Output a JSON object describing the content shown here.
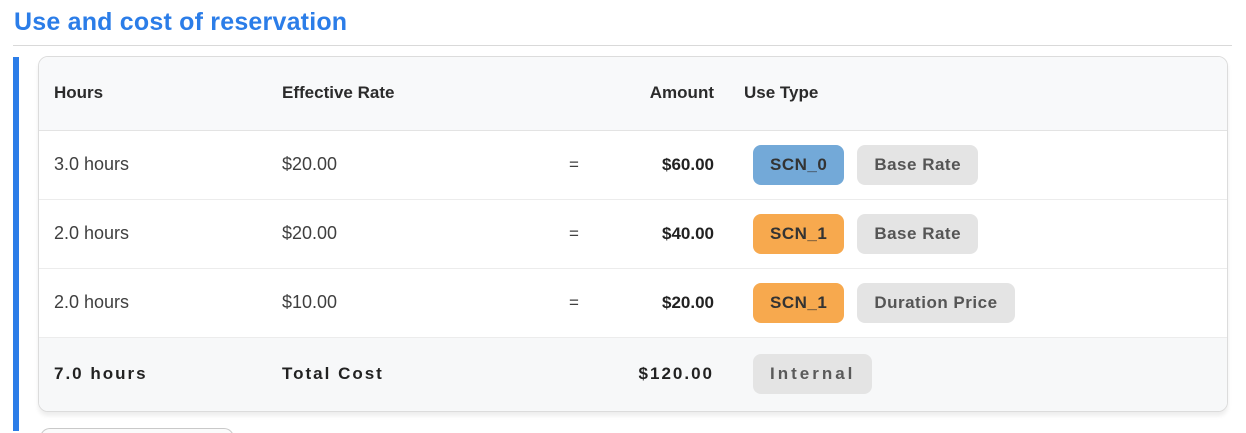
{
  "page": {
    "title": "Use and cost of reservation"
  },
  "colors": {
    "accent_blue": "#2b7de8",
    "scn0_badge": "#73a9d8",
    "scn1_badge": "#f7a94e",
    "neutral_badge": "#e4e4e4"
  },
  "table": {
    "headers": {
      "hours": "Hours",
      "rate": "Effective Rate",
      "equals": "",
      "amount": "Amount",
      "use_type": "Use Type"
    },
    "rows": [
      {
        "hours": "3.0 hours",
        "rate": "$20.00",
        "equals": "=",
        "amount": "$60.00",
        "scenario_badge": "SCN_0",
        "scenario_color": "blue",
        "type_badge": "Base Rate"
      },
      {
        "hours": "2.0 hours",
        "rate": "$20.00",
        "equals": "=",
        "amount": "$40.00",
        "scenario_badge": "SCN_1",
        "scenario_color": "orange",
        "type_badge": "Base Rate"
      },
      {
        "hours": "2.0 hours",
        "rate": "$10.00",
        "equals": "=",
        "amount": "$20.00",
        "scenario_badge": "SCN_1",
        "scenario_color": "orange",
        "type_badge": "Duration Price"
      }
    ],
    "total": {
      "hours": "7.0 hours",
      "label": "Total Cost",
      "amount": "$120.00",
      "badge": "Internal"
    }
  }
}
